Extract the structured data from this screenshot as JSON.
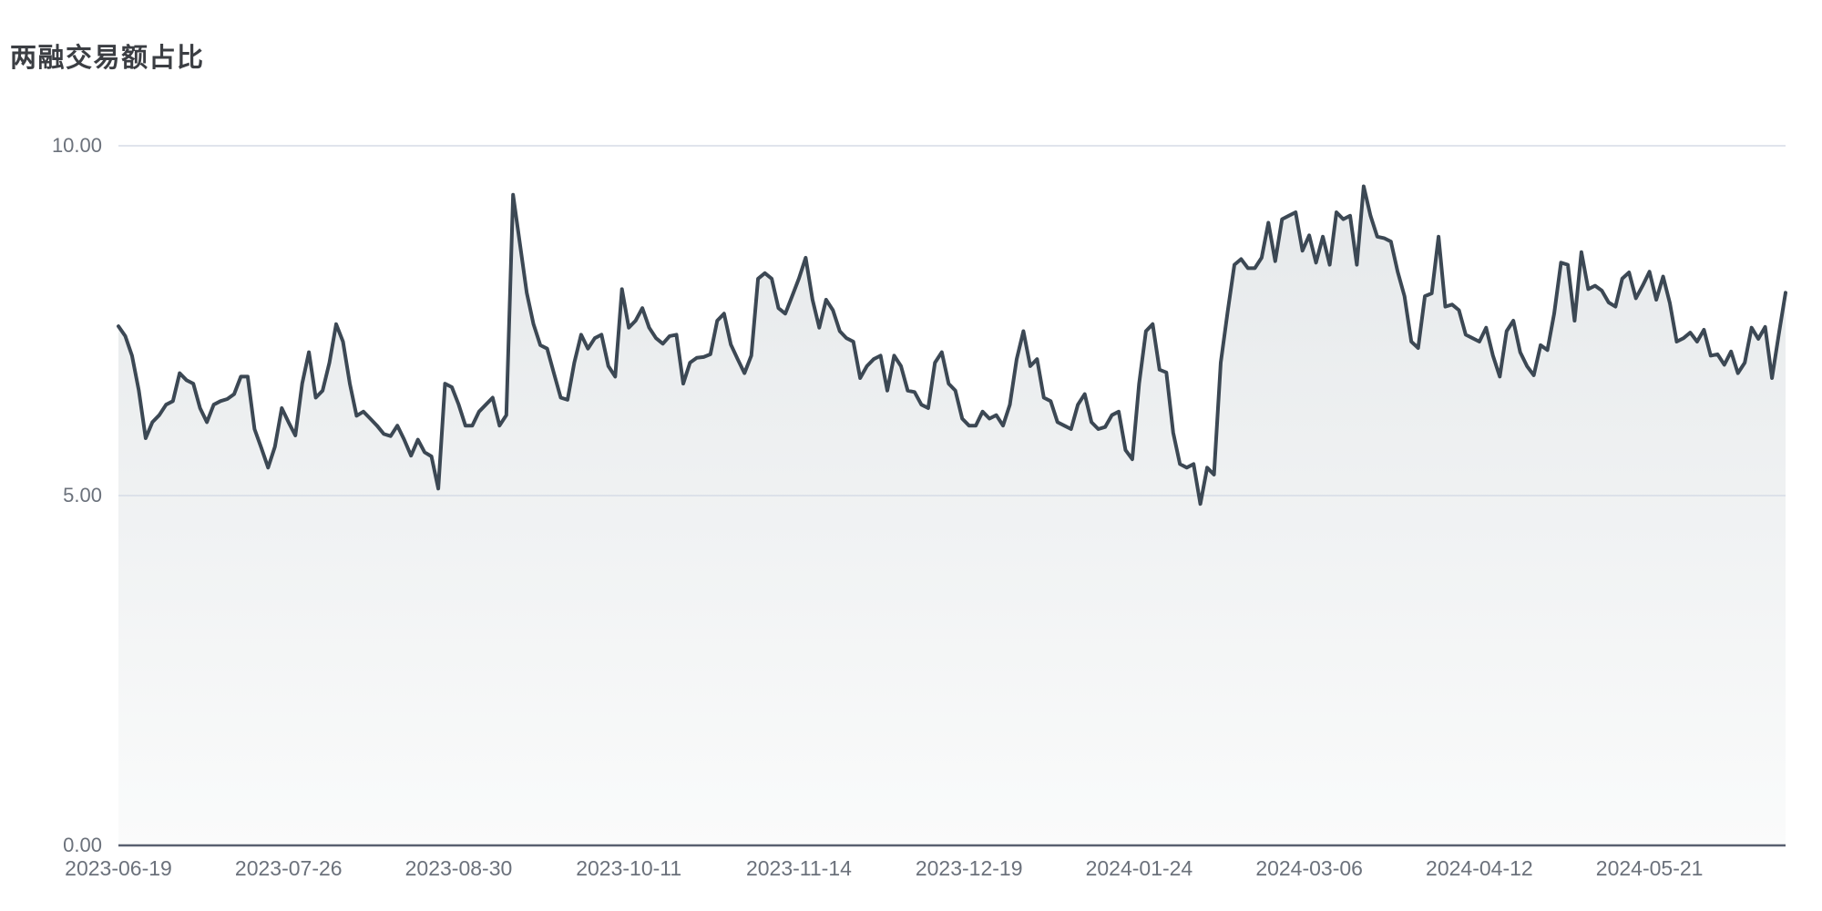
{
  "page": {
    "background_color": "#ffffff"
  },
  "chart_data": {
    "type": "area",
    "title": "两融交易额占比",
    "y_axis": {
      "range": [
        0,
        10
      ],
      "ticks": [
        {
          "value": 0,
          "label": "0.00"
        },
        {
          "value": 5,
          "label": "5.00"
        },
        {
          "value": 10,
          "label": "10.00"
        }
      ]
    },
    "x_axis": {
      "tick_interval_points": 25,
      "ticks": [
        {
          "index": 0,
          "label": "2023-06-19"
        },
        {
          "index": 25,
          "label": "2023-07-26"
        },
        {
          "index": 50,
          "label": "2023-08-30"
        },
        {
          "index": 75,
          "label": "2023-10-11"
        },
        {
          "index": 100,
          "label": "2023-11-14"
        },
        {
          "index": 125,
          "label": "2023-12-19"
        },
        {
          "index": 150,
          "label": "2024-01-24"
        },
        {
          "index": 175,
          "label": "2024-03-06"
        },
        {
          "index": 200,
          "label": "2024-04-12"
        },
        {
          "index": 225,
          "label": "2024-05-21"
        }
      ]
    },
    "series": [
      {
        "name": "两融交易额占比",
        "values": [
          7.42,
          7.28,
          7.0,
          6.5,
          5.82,
          6.05,
          6.15,
          6.3,
          6.35,
          6.75,
          6.65,
          6.6,
          6.25,
          6.05,
          6.3,
          6.35,
          6.38,
          6.45,
          6.7,
          6.7,
          5.95,
          5.68,
          5.4,
          5.7,
          6.25,
          6.05,
          5.86,
          6.6,
          7.05,
          6.4,
          6.5,
          6.9,
          7.45,
          7.2,
          6.6,
          6.14,
          6.2,
          6.1,
          6.0,
          5.88,
          5.85,
          6.0,
          5.8,
          5.57,
          5.8,
          5.62,
          5.56,
          5.1,
          6.6,
          6.55,
          6.3,
          6.0,
          6.0,
          6.2,
          6.3,
          6.4,
          6.0,
          6.15,
          9.3,
          8.6,
          7.9,
          7.45,
          7.15,
          7.1,
          6.75,
          6.4,
          6.37,
          6.9,
          7.3,
          7.1,
          7.25,
          7.3,
          6.85,
          6.7,
          7.95,
          7.4,
          7.5,
          7.68,
          7.4,
          7.25,
          7.17,
          7.28,
          7.3,
          6.6,
          6.9,
          6.97,
          6.98,
          7.02,
          7.5,
          7.6,
          7.16,
          6.95,
          6.75,
          7.0,
          8.1,
          8.18,
          8.1,
          7.68,
          7.6,
          7.85,
          8.1,
          8.4,
          7.8,
          7.4,
          7.8,
          7.65,
          7.35,
          7.25,
          7.2,
          6.68,
          6.85,
          6.95,
          7.0,
          6.5,
          7.0,
          6.85,
          6.5,
          6.48,
          6.3,
          6.25,
          6.9,
          7.05,
          6.6,
          6.5,
          6.1,
          6.0,
          6.0,
          6.2,
          6.1,
          6.15,
          6.0,
          6.3,
          6.95,
          7.35,
          6.85,
          6.95,
          6.4,
          6.35,
          6.05,
          6.0,
          5.95,
          6.3,
          6.45,
          6.05,
          5.95,
          5.98,
          6.15,
          6.2,
          5.65,
          5.52,
          6.6,
          7.35,
          7.45,
          6.8,
          6.76,
          5.9,
          5.45,
          5.4,
          5.45,
          4.88,
          5.4,
          5.3,
          6.9,
          7.62,
          8.3,
          8.38,
          8.25,
          8.25,
          8.4,
          8.9,
          8.35,
          8.95,
          9.0,
          9.05,
          8.5,
          8.72,
          8.33,
          8.7,
          8.3,
          9.05,
          8.95,
          9.0,
          8.3,
          9.42,
          9.0,
          8.7,
          8.68,
          8.63,
          8.2,
          7.85,
          7.2,
          7.11,
          7.85,
          7.89,
          8.7,
          7.7,
          7.73,
          7.65,
          7.3,
          7.25,
          7.2,
          7.4,
          7.0,
          6.7,
          7.35,
          7.5,
          7.05,
          6.85,
          6.72,
          7.15,
          7.08,
          7.6,
          8.33,
          8.3,
          7.5,
          8.48,
          7.95,
          8.0,
          7.93,
          7.76,
          7.7,
          8.1,
          8.19,
          7.82,
          8.0,
          8.2,
          7.8,
          8.13,
          7.75,
          7.2,
          7.25,
          7.33,
          7.2,
          7.37,
          7.0,
          7.02,
          6.87,
          7.06,
          6.75,
          6.9,
          7.4,
          7.24,
          7.41,
          6.68,
          7.3,
          7.9
        ]
      }
    ],
    "layout": {
      "grid": "horizontal-only",
      "legend": "none"
    },
    "colors": {
      "line": "#3c4854",
      "area_top": "#e5e8ea",
      "area_bottom": "#fafbfb",
      "gridline": "#d6dce6",
      "axis_line": "#596070",
      "tick_text": "#6b717b",
      "title_text": "#3b3e43"
    }
  }
}
